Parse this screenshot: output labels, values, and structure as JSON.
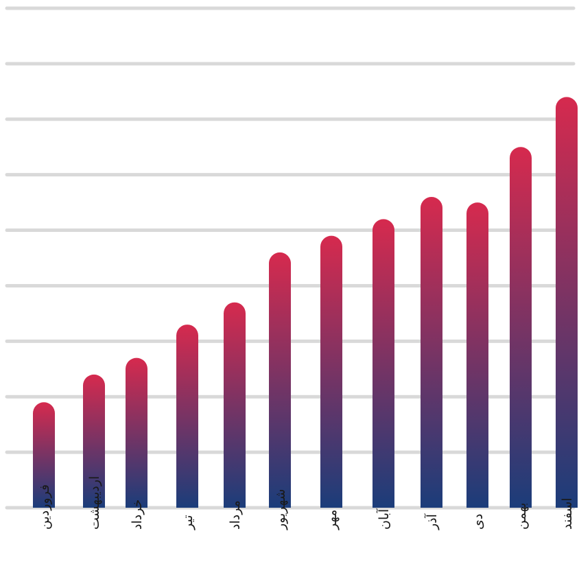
{
  "chart_data": {
    "type": "bar",
    "categories": [
      "فروردین",
      "اردیبهشت",
      "خرداد",
      "تیر",
      "مرداد",
      "شهریور",
      "مهر",
      "آبان",
      "آذر",
      "دی",
      "بهمن",
      "اسفند"
    ],
    "values": [
      1.9,
      2.4,
      2.7,
      3.3,
      3.7,
      4.6,
      4.9,
      5.2,
      5.6,
      5.5,
      6.5,
      7.4
    ],
    "ylim": [
      0,
      9
    ],
    "grid": true,
    "colors": {
      "bar_top": "#d62a4e",
      "bar_bottom": "#1b3d7a",
      "grid": "#d9d9d9"
    }
  }
}
